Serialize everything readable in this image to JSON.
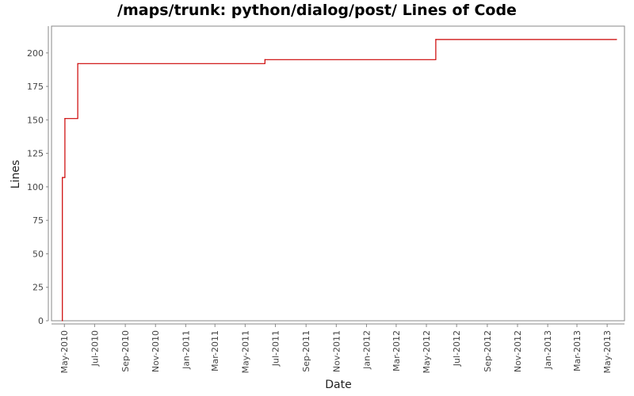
{
  "chart_data": {
    "type": "line",
    "title": "/maps/trunk: python/dialog/post/ Lines of Code",
    "xlabel": "Date",
    "ylabel": "Lines",
    "ylim": [
      0,
      220
    ],
    "xlim": [
      "2010-04-05",
      "2013-06-05"
    ],
    "y_ticks": [
      0,
      25,
      50,
      75,
      100,
      125,
      150,
      175,
      200
    ],
    "x_ticks": [
      {
        "date": "2010-05-01",
        "label": "May-2010"
      },
      {
        "date": "2010-07-01",
        "label": "Jul-2010"
      },
      {
        "date": "2010-09-01",
        "label": "Sep-2010"
      },
      {
        "date": "2010-11-01",
        "label": "Nov-2010"
      },
      {
        "date": "2011-01-01",
        "label": "Jan-2011"
      },
      {
        "date": "2011-03-01",
        "label": "Mar-2011"
      },
      {
        "date": "2011-05-01",
        "label": "May-2011"
      },
      {
        "date": "2011-07-01",
        "label": "Jul-2011"
      },
      {
        "date": "2011-09-01",
        "label": "Sep-2011"
      },
      {
        "date": "2011-11-01",
        "label": "Nov-2011"
      },
      {
        "date": "2012-01-01",
        "label": "Jan-2012"
      },
      {
        "date": "2012-03-01",
        "label": "Mar-2012"
      },
      {
        "date": "2012-05-01",
        "label": "May-2012"
      },
      {
        "date": "2012-07-01",
        "label": "Jul-2012"
      },
      {
        "date": "2012-09-01",
        "label": "Sep-2012"
      },
      {
        "date": "2012-11-01",
        "label": "Nov-2012"
      },
      {
        "date": "2013-01-01",
        "label": "Jan-2013"
      },
      {
        "date": "2013-03-01",
        "label": "Mar-2013"
      },
      {
        "date": "2013-05-01",
        "label": "May-2013"
      }
    ],
    "series": [
      {
        "color": "#cc0000",
        "step": true,
        "points": [
          {
            "x": "2010-04-27",
            "y": 0
          },
          {
            "x": "2010-04-27",
            "y": 107
          },
          {
            "x": "2010-05-02",
            "y": 151
          },
          {
            "x": "2010-05-28",
            "y": 192
          },
          {
            "x": "2011-06-10",
            "y": 195
          },
          {
            "x": "2012-05-20",
            "y": 210
          },
          {
            "x": "2013-05-20",
            "y": 210
          }
        ]
      }
    ],
    "grid": false,
    "legend": "none"
  }
}
